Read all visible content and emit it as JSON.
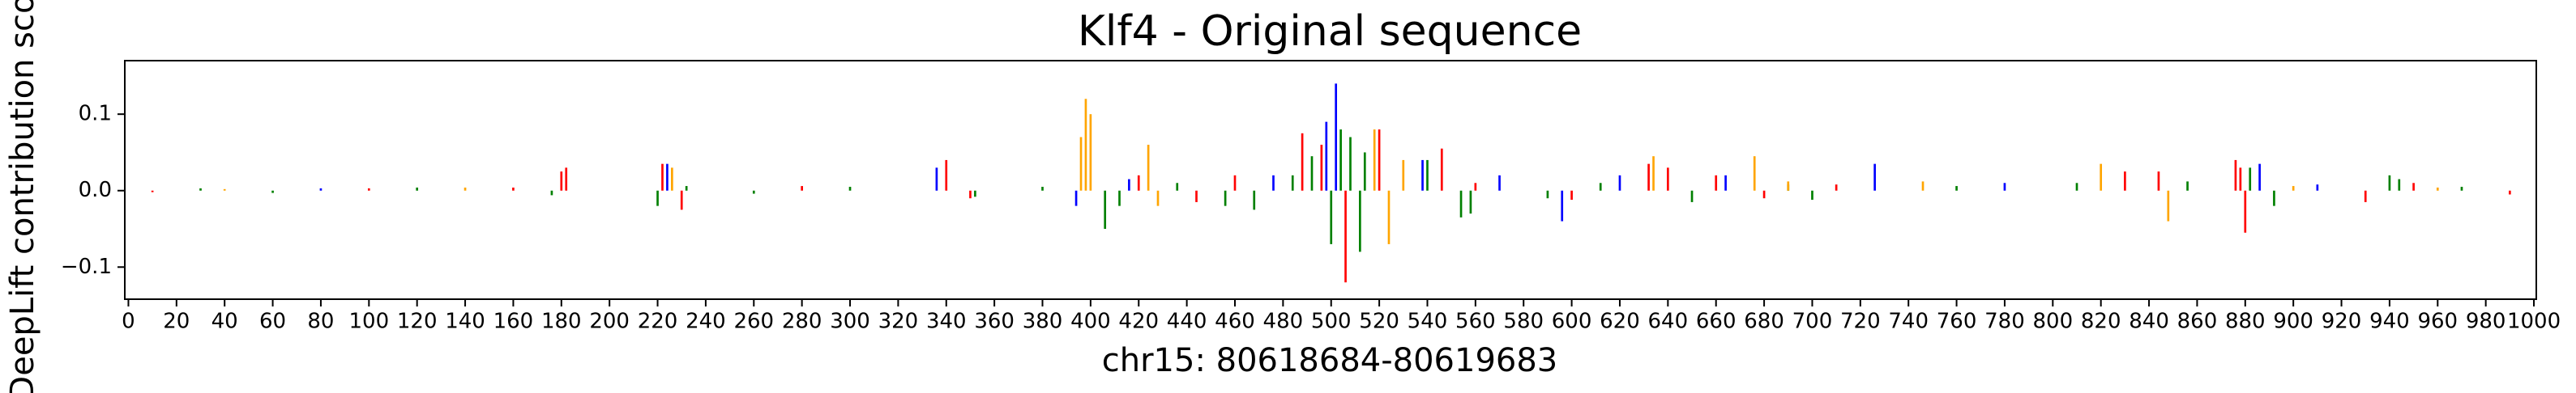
{
  "chart_data": {
    "type": "logo",
    "title": "Klf4 - Original sequence",
    "xlabel": "chr15: 80618684-80619683",
    "ylabel": "DeepLift contribution score",
    "xlim": [
      -1.5,
      1001
    ],
    "ylim": [
      -0.142,
      0.17
    ],
    "xticks": [
      0,
      20,
      40,
      60,
      80,
      100,
      120,
      140,
      160,
      180,
      200,
      220,
      240,
      260,
      280,
      300,
      320,
      340,
      360,
      380,
      400,
      420,
      440,
      460,
      480,
      500,
      520,
      540,
      560,
      580,
      600,
      620,
      640,
      660,
      680,
      700,
      720,
      740,
      760,
      780,
      800,
      820,
      840,
      860,
      880,
      900,
      920,
      940,
      960,
      980,
      1000
    ],
    "yticks": [
      {
        "value": -0.1,
        "label": "−0.1"
      },
      {
        "value": 0,
        "label": "0.0"
      },
      0.1
    ],
    "grid": false,
    "series": [
      {
        "color": "#008000",
        "x": [
          30,
          60,
          120,
          176,
          220,
          232,
          260,
          300,
          352,
          380,
          406,
          412,
          436,
          456,
          468,
          484,
          492,
          500,
          504,
          508,
          512,
          514,
          540,
          554,
          558,
          590,
          612,
          650,
          690,
          700,
          760,
          810,
          856,
          882,
          892,
          940,
          944,
          970
        ],
        "values": [
          0.003,
          -0.003,
          0.004,
          -0.006,
          -0.02,
          0.006,
          -0.004,
          0.005,
          -0.008,
          0.005,
          -0.05,
          -0.02,
          0.01,
          -0.02,
          -0.025,
          0.02,
          0.045,
          -0.07,
          0.08,
          0.07,
          -0.08,
          0.05,
          0.04,
          -0.035,
          -0.03,
          -0.01,
          0.01,
          -0.015,
          0.008,
          -0.012,
          0.006,
          0.01,
          0.012,
          0.03,
          -0.02,
          0.02,
          0.015,
          0.005
        ]
      },
      {
        "color": "#0000ff",
        "x": [
          80,
          224,
          336,
          394,
          416,
          476,
          498,
          502,
          538,
          570,
          596,
          620,
          664,
          726,
          780,
          886,
          910
        ],
        "values": [
          0.003,
          0.035,
          0.03,
          -0.02,
          0.015,
          0.02,
          0.09,
          0.14,
          0.04,
          0.02,
          -0.04,
          0.02,
          0.02,
          0.035,
          0.01,
          0.035,
          0.008
        ]
      },
      {
        "color": "#ffa500",
        "x": [
          40,
          140,
          226,
          396,
          398,
          400,
          424,
          428,
          518,
          524,
          530,
          634,
          676,
          690,
          746,
          820,
          848,
          900,
          960
        ],
        "values": [
          0.002,
          0.004,
          0.03,
          0.07,
          0.12,
          0.1,
          0.06,
          -0.02,
          0.08,
          -0.07,
          0.04,
          0.045,
          0.045,
          0.012,
          0.012,
          0.035,
          -0.04,
          0.006,
          0.004
        ]
      },
      {
        "color": "#ff0000",
        "x": [
          10,
          100,
          160,
          180,
          182,
          222,
          230,
          280,
          340,
          350,
          420,
          444,
          460,
          488,
          496,
          506,
          520,
          546,
          560,
          600,
          632,
          640,
          660,
          680,
          710,
          830,
          844,
          876,
          878,
          880,
          930,
          950,
          990
        ],
        "values": [
          -0.002,
          0.003,
          0.004,
          0.025,
          0.03,
          0.035,
          -0.025,
          0.006,
          0.04,
          -0.01,
          0.02,
          -0.015,
          0.02,
          0.075,
          0.06,
          -0.12,
          0.08,
          0.055,
          0.01,
          -0.012,
          0.035,
          0.03,
          0.02,
          -0.01,
          0.008,
          0.025,
          0.025,
          0.04,
          0.03,
          -0.055,
          -0.015,
          0.01,
          -0.005
        ]
      }
    ]
  }
}
